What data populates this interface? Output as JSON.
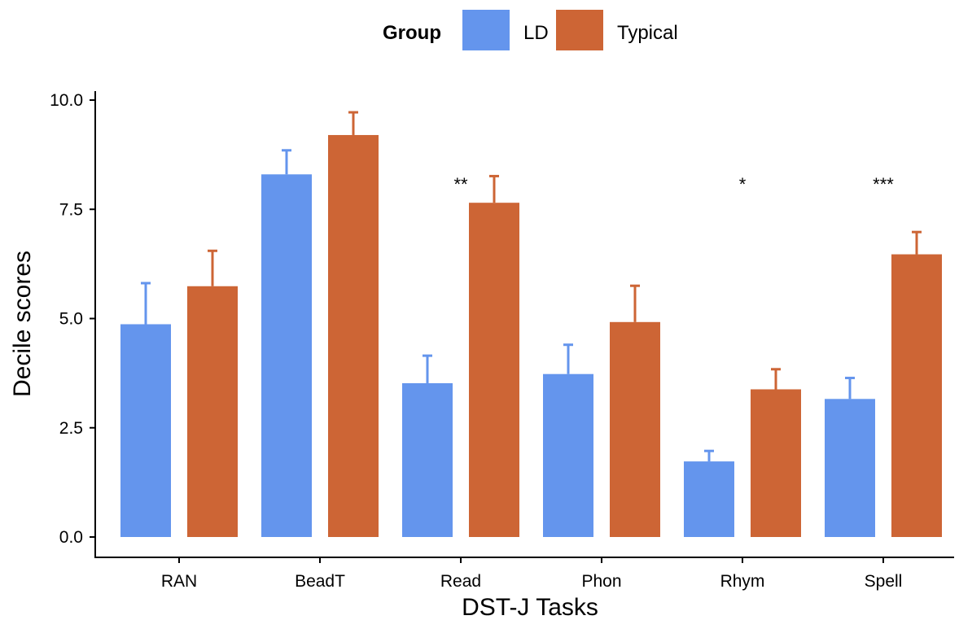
{
  "chart_data": {
    "type": "bar",
    "xlabel": "DST-J Tasks",
    "ylabel": "Decile scores",
    "ylim": [
      0,
      10
    ],
    "yticks": [
      "0.0",
      "2.5",
      "5.0",
      "7.5",
      "10.0"
    ],
    "ytick_values": [
      0,
      2.5,
      5,
      7.5,
      10
    ],
    "categories": [
      "RAN",
      "BeadT",
      "Read",
      "Phon",
      "Rhym",
      "Spell"
    ],
    "legend": {
      "title": "Group",
      "position": "top"
    },
    "series": [
      {
        "name": "LD",
        "color": "#6495ED",
        "values": [
          4.87,
          8.3,
          3.52,
          3.73,
          1.73,
          3.16
        ],
        "error_upper": [
          5.81,
          8.85,
          4.15,
          4.4,
          1.97,
          3.64
        ]
      },
      {
        "name": "Typical",
        "color": "#CD6535",
        "values": [
          5.74,
          9.2,
          7.65,
          4.92,
          3.38,
          6.47
        ],
        "error_upper": [
          6.55,
          9.72,
          8.26,
          5.75,
          3.84,
          6.98
        ]
      }
    ],
    "annotations": [
      "",
      "",
      "**",
      "",
      "*",
      "***"
    ],
    "grid": false
  }
}
